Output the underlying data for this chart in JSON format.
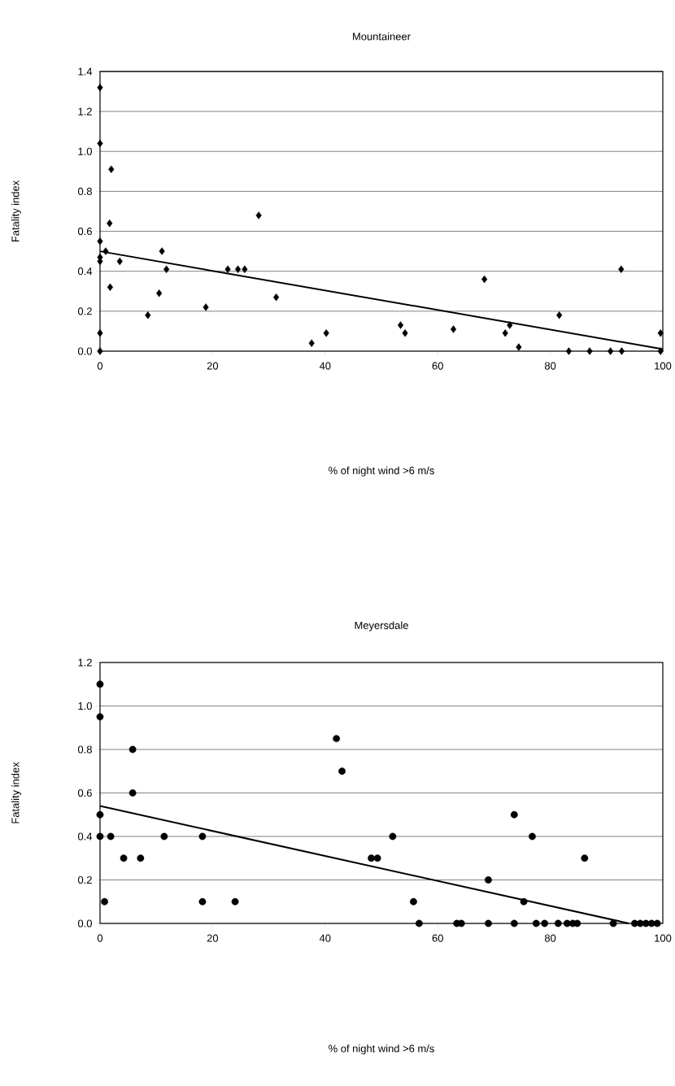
{
  "chart_data": [
    {
      "type": "scatter",
      "title": "Mountaineer",
      "xlabel": "% of night  wind >6 m/s",
      "ylabel": "Fatality index",
      "marker": "diamond",
      "grid": "y",
      "xlim": [
        0,
        100
      ],
      "ylim": [
        0,
        1.4
      ],
      "xticks": [
        0,
        20,
        40,
        60,
        80,
        100
      ],
      "yticks": [
        {
          "value": 0,
          "label": "0.0"
        },
        {
          "value": 0.2,
          "label": "0.2"
        },
        {
          "value": 0.4,
          "label": "0.4"
        },
        {
          "value": 0.6,
          "label": "0.6"
        },
        {
          "value": 0.8,
          "label": "0.8"
        },
        {
          "value": 1.0,
          "label": "1.0"
        },
        {
          "value": 1.2,
          "label": "1.2"
        },
        {
          "value": 1.4,
          "label": "1.4"
        }
      ],
      "series": [
        {
          "color": "#000000",
          "x": [
            0,
            0,
            0,
            0,
            0,
            0,
            0,
            1,
            2,
            1.7,
            1.8,
            3.5,
            8.5,
            10.5,
            11,
            11.8,
            18.8,
            22.7,
            24.5,
            25.7,
            28.2,
            31.3,
            37.6,
            40.2,
            53.4,
            54.2,
            62.8,
            68.3,
            72,
            72.8,
            74.4,
            81.6,
            83.3,
            87,
            90.7,
            92.6,
            92.7,
            99.6,
            99.6
          ],
          "values": [
            1.32,
            1.04,
            0.55,
            0.47,
            0.45,
            0.09,
            0,
            0.5,
            0.91,
            0.64,
            0.32,
            0.45,
            0.18,
            0.29,
            0.5,
            0.41,
            0.22,
            0.41,
            0.41,
            0.41,
            0.68,
            0.27,
            0.04,
            0.09,
            0.13,
            0.09,
            0.11,
            0.36,
            0.09,
            0.13,
            0.02,
            0.18,
            0,
            0,
            0,
            0.41,
            0,
            0.09,
            0
          ]
        },
        {
          "type": "line",
          "marker": "none",
          "color": "#000000",
          "x": [
            0,
            100
          ],
          "values": [
            0.5,
            0.01
          ]
        }
      ]
    },
    {
      "type": "scatter",
      "title": "Meyersdale",
      "xlabel": "% of night  wind >6 m/s",
      "ylabel": "Fatality index",
      "marker": "circle",
      "grid": "y",
      "xlim": [
        0,
        100
      ],
      "ylim": [
        0,
        1.2
      ],
      "xticks": [
        0,
        20,
        40,
        60,
        80,
        100
      ],
      "yticks": [
        {
          "value": 0,
          "label": "0.0"
        },
        {
          "value": 0.2,
          "label": "0.2"
        },
        {
          "value": 0.4,
          "label": "0.4"
        },
        {
          "value": 0.6,
          "label": "0.6"
        },
        {
          "value": 0.8,
          "label": "0.8"
        },
        {
          "value": 1.0,
          "label": "1.0"
        },
        {
          "value": 1.2,
          "label": "1.2"
        }
      ],
      "series": [
        {
          "color": "#000000",
          "x": [
            0,
            0,
            0,
            0,
            0.8,
            1.9,
            4.2,
            5.8,
            5.8,
            7.2,
            11.4,
            18.2,
            18.2,
            24,
            42,
            43,
            48.2,
            49.3,
            52,
            55.7,
            56.7,
            63.4,
            64.2,
            69,
            69,
            73.6,
            73.6,
            75.3,
            76.8,
            77.5,
            79,
            81.4,
            83,
            84,
            84.8,
            86.1,
            91.2,
            95,
            96,
            97,
            98,
            99
          ],
          "values": [
            1.1,
            0.95,
            0.5,
            0.4,
            0.1,
            0.4,
            0.3,
            0.8,
            0.6,
            0.3,
            0.4,
            0.4,
            0.1,
            0.1,
            0.85,
            0.7,
            0.3,
            0.3,
            0.4,
            0.1,
            0,
            0,
            0,
            0.2,
            0,
            0.5,
            0,
            0.1,
            0.4,
            0,
            0,
            0,
            0,
            0,
            0,
            0.3,
            0,
            0,
            0,
            0,
            0,
            0
          ]
        },
        {
          "type": "line",
          "marker": "none",
          "color": "#000000",
          "x": [
            0,
            94
          ],
          "values": [
            0.54,
            0
          ]
        }
      ]
    }
  ]
}
